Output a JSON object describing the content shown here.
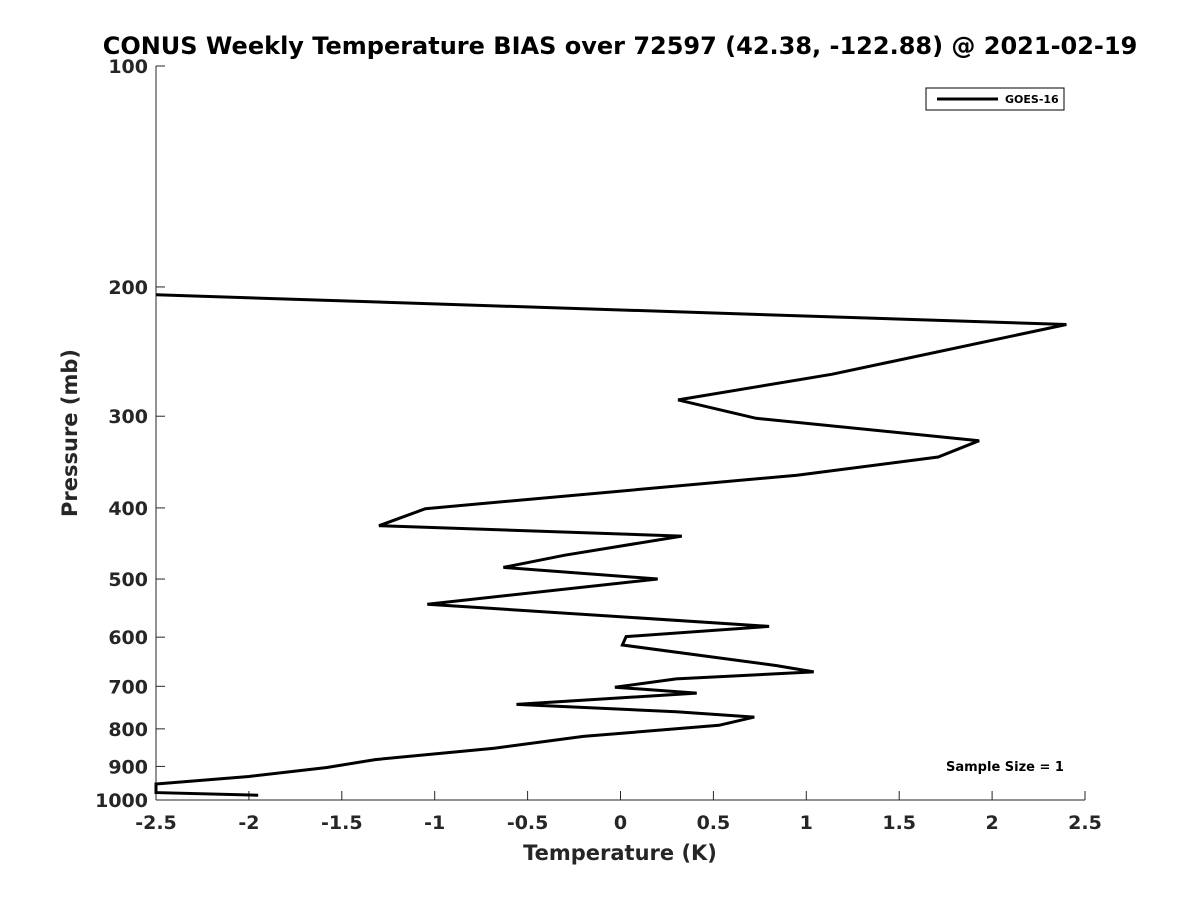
{
  "chart_data": {
    "type": "line",
    "title": "CONUS Weekly Temperature BIAS over 72597 (42.38, -122.88) @ 2021-02-19",
    "xlabel": "Temperature (K)",
    "ylabel": "Pressure (mb)",
    "xlim": [
      -2.5,
      2.5
    ],
    "ylim": [
      100,
      1000
    ],
    "y_scale": "log",
    "y_reversed": true,
    "x_ticks": [
      "-2.5",
      "-2",
      "-1.5",
      "-1",
      "-0.5",
      "0",
      "0.5",
      "1",
      "1.5",
      "2",
      "2.5"
    ],
    "y_ticks": [
      "100",
      "200",
      "300",
      "400",
      "500",
      "600",
      "700",
      "800",
      "900",
      "1000"
    ],
    "legend": {
      "placement": "top-right",
      "entries": [
        "GOES-16"
      ]
    },
    "grid": false,
    "annotation": "Sample Size = 1",
    "series": [
      {
        "name": "GOES-16",
        "color": "#000000",
        "points": [
          [
            -2.5,
            205
          ],
          [
            2.4,
            225
          ],
          [
            1.14,
            263
          ],
          [
            0.31,
            285
          ],
          [
            0.73,
            302
          ],
          [
            1.93,
            324
          ],
          [
            1.71,
            341
          ],
          [
            0.95,
            361
          ],
          [
            -1.05,
            401
          ],
          [
            -1.3,
            423
          ],
          [
            0.33,
            437
          ],
          [
            -0.3,
            464
          ],
          [
            -0.63,
            482
          ],
          [
            0.2,
            500
          ],
          [
            -1.04,
            541
          ],
          [
            0.8,
            580
          ],
          [
            0.03,
            599
          ],
          [
            0.01,
            615
          ],
          [
            0.84,
            656
          ],
          [
            1.04,
            669
          ],
          [
            0.3,
            684
          ],
          [
            -0.03,
            702
          ],
          [
            0.41,
            715
          ],
          [
            -0.56,
            741
          ],
          [
            0.3,
            758
          ],
          [
            0.72,
            771
          ],
          [
            0.53,
            791
          ],
          [
            -0.2,
            819
          ],
          [
            -0.68,
            850
          ],
          [
            -1.32,
            881
          ],
          [
            -1.58,
            903
          ],
          [
            -2.0,
            929
          ],
          [
            -2.5,
            951
          ],
          [
            -2.5,
            977
          ],
          [
            -1.95,
            985
          ]
        ]
      }
    ]
  }
}
